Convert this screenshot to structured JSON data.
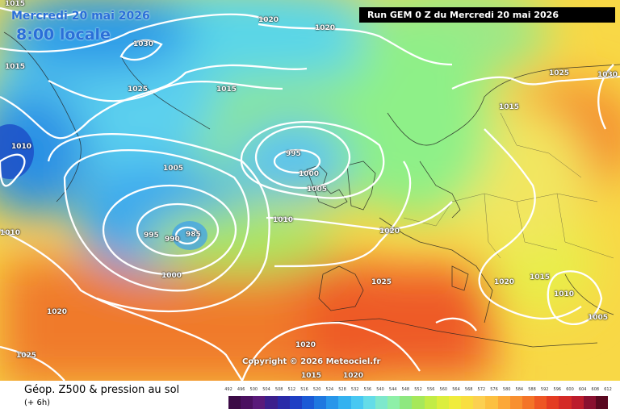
{
  "header": {
    "date": "Mercredi 20 mai 2026",
    "time": "8:00 locale",
    "run": "Run GEM 0 Z du Mercredi 20 mai 2026"
  },
  "copyright": "Copyright © 2026 Meteociel.fr",
  "footer": {
    "title": "Géop. Z500 & pression au sol",
    "step": "(+ 6h)"
  },
  "isobar_labels": [
    "1015",
    "1030",
    "1020",
    "1020",
    "1025",
    "1015",
    "1030",
    "1015",
    "1025",
    "1015",
    "1010",
    "995",
    "1000",
    "1005",
    "1005",
    "1010",
    "1020",
    "995",
    "990",
    "985",
    "1000",
    "1010",
    "1025",
    "1020",
    "1010",
    "1015",
    "1020",
    "1025",
    "1005",
    "1020",
    "1015",
    "1020"
  ],
  "legend": {
    "ticks": [
      "492",
      "496",
      "500",
      "504",
      "508",
      "512",
      "516",
      "520",
      "524",
      "528",
      "532",
      "536",
      "540",
      "544",
      "548",
      "552",
      "556",
      "560",
      "564",
      "568",
      "572",
      "576",
      "580",
      "584",
      "588",
      "592",
      "596",
      "600",
      "604",
      "608",
      "612"
    ],
    "colors": [
      "#3b0a45",
      "#4b1060",
      "#5a1a7a",
      "#3c1f8c",
      "#2a2aa8",
      "#1f3fc4",
      "#1b5ad6",
      "#1f78e0",
      "#2896ea",
      "#34b2f0",
      "#48c8f2",
      "#64dce8",
      "#7ee8cc",
      "#8ef0a8",
      "#8ee880",
      "#a6e85a",
      "#c2ec46",
      "#dcee3e",
      "#f0ec3c",
      "#f8de40",
      "#fcd050",
      "#fcc040",
      "#fca838",
      "#f89030",
      "#f47428",
      "#ee5624",
      "#e43c22",
      "#d42a26",
      "#bc1c2c",
      "#8a1030",
      "#5a0820"
    ]
  }
}
